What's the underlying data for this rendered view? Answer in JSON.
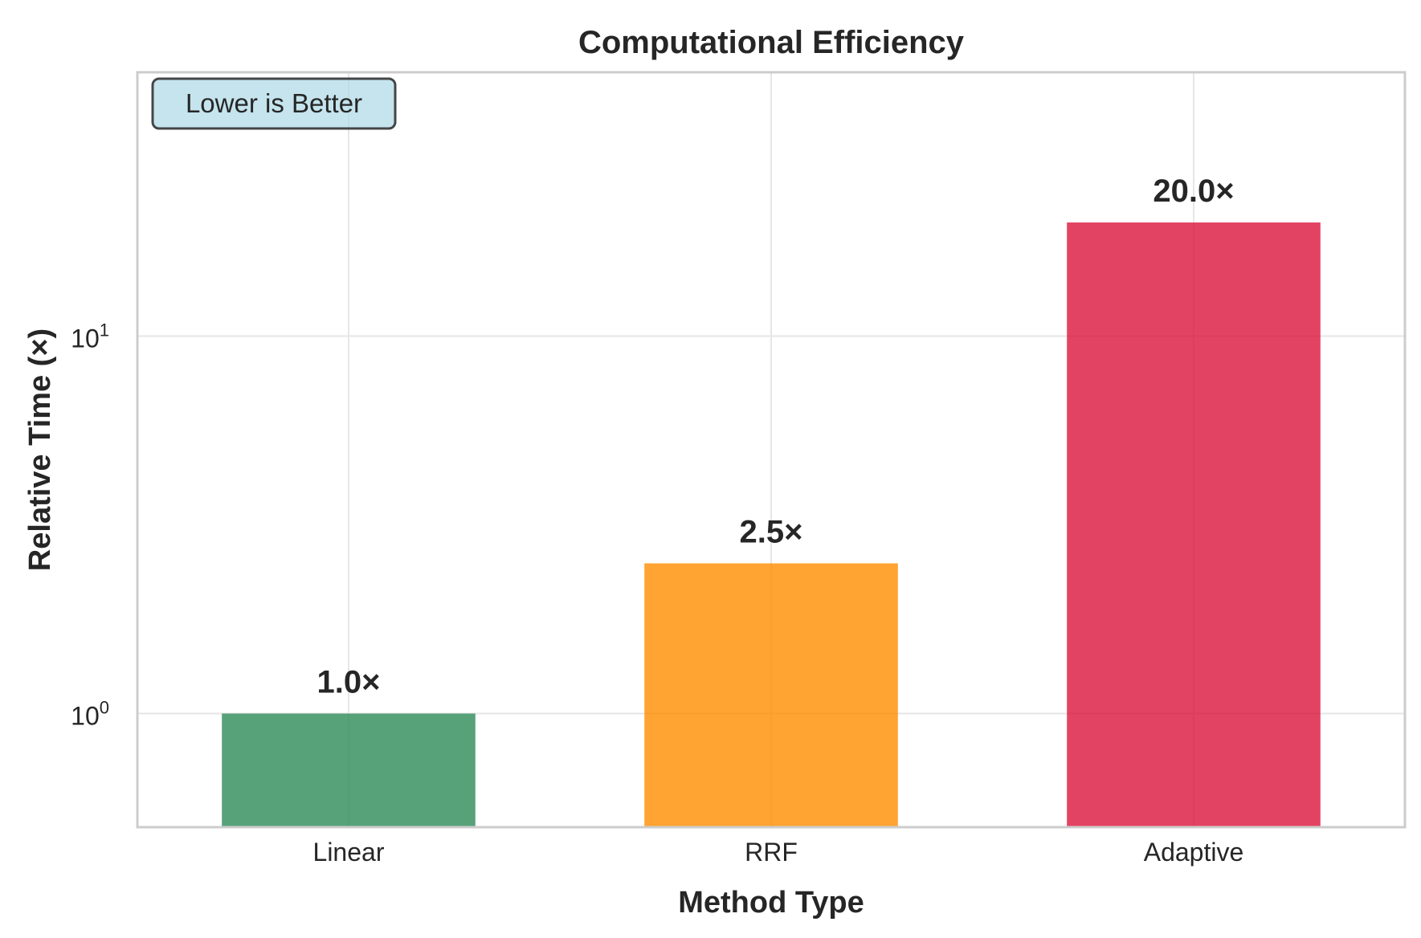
{
  "chart_data": {
    "type": "bar",
    "title": "Computational Efficiency",
    "xlabel": "Method Type",
    "ylabel": "Relative Time (×)",
    "yscale": "log",
    "ylim": [
      0.5,
      50
    ],
    "yticks": [
      {
        "value": 1,
        "base": "10",
        "exp": "0"
      },
      {
        "value": 10,
        "base": "10",
        "exp": "1"
      }
    ],
    "categories": [
      "Linear",
      "RRF",
      "Adaptive"
    ],
    "values": [
      1.0,
      2.5,
      20.0
    ],
    "value_labels": [
      "1.0×",
      "2.5×",
      "20.0×"
    ],
    "colors": [
      "#2e8b57",
      "#ff8c00",
      "#dc143c"
    ],
    "grid": true,
    "annotation": {
      "text": "Lower is Better",
      "position": "top-left",
      "background": "#add8e6",
      "border": "#333333"
    }
  }
}
